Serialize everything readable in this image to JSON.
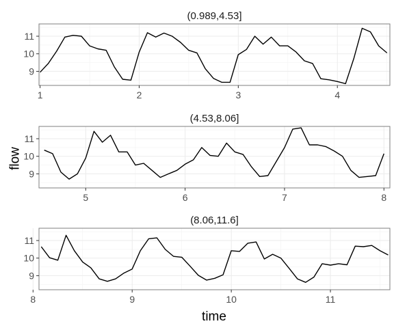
{
  "chart_data": {
    "type": "line",
    "xlabel": "time",
    "ylabel": "flow",
    "grid": true,
    "panels": [
      {
        "title": "(0.989,4.53]",
        "xlim": [
          0.989,
          4.53
        ],
        "ylim": [
          8.2,
          11.7
        ],
        "xticks": [
          1,
          2,
          3,
          4
        ],
        "yticks": [
          9,
          10,
          11
        ],
        "x": [
          1.0,
          1.083,
          1.167,
          1.25,
          1.333,
          1.417,
          1.5,
          1.583,
          1.667,
          1.75,
          1.833,
          1.917,
          2.0,
          2.083,
          2.167,
          2.25,
          2.333,
          2.417,
          2.5,
          2.583,
          2.667,
          2.75,
          2.833,
          2.917,
          3.0,
          3.083,
          3.167,
          3.25,
          3.333,
          3.417,
          3.5,
          3.583,
          3.667,
          3.75,
          3.833,
          3.917,
          4.0,
          4.083,
          4.167,
          4.25,
          4.333,
          4.417,
          4.5
        ],
        "y": [
          8.95,
          9.45,
          10.15,
          10.95,
          11.05,
          11.0,
          10.45,
          10.28,
          10.2,
          9.25,
          8.55,
          8.5,
          10.1,
          11.2,
          10.95,
          11.18,
          11.0,
          10.65,
          10.2,
          10.05,
          9.15,
          8.6,
          8.38,
          8.38,
          9.95,
          10.25,
          11.0,
          10.55,
          10.95,
          10.45,
          10.45,
          10.1,
          9.6,
          9.45,
          8.58,
          8.52,
          8.42,
          8.3,
          9.75,
          11.45,
          11.25,
          10.45,
          10.05
        ]
      },
      {
        "title": "(4.53,8.06]",
        "xlim": [
          4.53,
          8.06
        ],
        "ylim": [
          8.2,
          11.7
        ],
        "xticks": [
          5,
          6,
          7,
          8
        ],
        "yticks": [
          9,
          10,
          11
        ],
        "x": [
          4.583,
          4.667,
          4.75,
          4.833,
          4.917,
          5.0,
          5.083,
          5.167,
          5.25,
          5.333,
          5.417,
          5.5,
          5.583,
          5.667,
          5.75,
          5.833,
          5.917,
          6.0,
          6.083,
          6.167,
          6.25,
          6.333,
          6.417,
          6.5,
          6.583,
          6.667,
          6.75,
          6.833,
          6.917,
          7.0,
          7.083,
          7.167,
          7.25,
          7.333,
          7.417,
          7.5,
          7.583,
          7.667,
          7.75,
          7.833,
          7.917,
          8.0
        ],
        "y": [
          10.35,
          10.15,
          9.1,
          8.7,
          9.0,
          9.9,
          11.42,
          10.8,
          11.2,
          10.25,
          10.25,
          9.5,
          9.6,
          9.2,
          8.8,
          9.0,
          9.2,
          9.55,
          9.8,
          10.5,
          10.05,
          10.0,
          10.75,
          10.25,
          10.1,
          9.4,
          8.85,
          8.9,
          9.7,
          10.5,
          11.55,
          11.62,
          10.65,
          10.65,
          10.55,
          10.3,
          10.0,
          9.2,
          8.8,
          8.85,
          8.9,
          10.15
        ]
      },
      {
        "title": "(8.06,11.6]",
        "xlim": [
          8.06,
          11.6
        ],
        "ylim": [
          8.2,
          11.7
        ],
        "xticks": [
          8,
          9,
          10,
          11
        ],
        "yticks": [
          9,
          10,
          11
        ],
        "x": [
          8.083,
          8.167,
          8.25,
          8.333,
          8.417,
          8.5,
          8.583,
          8.667,
          8.75,
          8.833,
          8.917,
          9.0,
          9.083,
          9.167,
          9.25,
          9.333,
          9.417,
          9.5,
          9.583,
          9.667,
          9.75,
          9.833,
          9.917,
          10.0,
          10.083,
          10.167,
          10.25,
          10.333,
          10.417,
          10.5,
          10.583,
          10.667,
          10.75,
          10.833,
          10.917,
          11.0,
          11.083,
          11.167,
          11.25,
          11.333,
          11.417,
          11.5,
          11.583
        ],
        "y": [
          10.65,
          10.02,
          9.88,
          11.3,
          10.42,
          9.78,
          9.45,
          8.82,
          8.68,
          8.82,
          9.15,
          9.38,
          10.42,
          11.1,
          11.15,
          10.5,
          10.1,
          10.05,
          9.55,
          9.02,
          8.75,
          8.85,
          9.05,
          10.42,
          10.38,
          10.85,
          10.92,
          9.95,
          10.22,
          10.0,
          9.42,
          8.82,
          8.62,
          8.92,
          9.68,
          9.6,
          9.68,
          9.62,
          10.68,
          10.65,
          10.72,
          10.42,
          10.18
        ]
      }
    ]
  }
}
